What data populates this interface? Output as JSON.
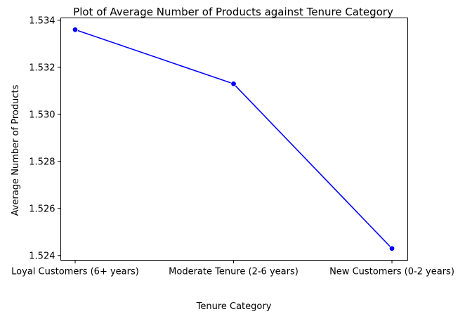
{
  "chart_data": {
    "type": "line",
    "title": "Plot of Average Number of Products against Tenure Category",
    "xlabel": "Tenure Category",
    "ylabel": "Average Number of Products",
    "categories": [
      "Loyal Customers (6+ years)",
      "Moderate Tenure (2-6 years)",
      "New Customers (0-2 years)"
    ],
    "series": [
      {
        "values": [
          1.5336,
          1.5313,
          1.5243
        ],
        "color": "#0000ff",
        "marker": "circle"
      }
    ],
    "ylim": [
      1.5238,
      1.5341
    ],
    "yticks": [
      "1.524",
      "1.526",
      "1.528",
      "1.530",
      "1.532",
      "1.534"
    ],
    "ytick_values": [
      1.524,
      1.526,
      1.528,
      1.53,
      1.532,
      1.534
    ],
    "grid": false,
    "legend": "none"
  }
}
